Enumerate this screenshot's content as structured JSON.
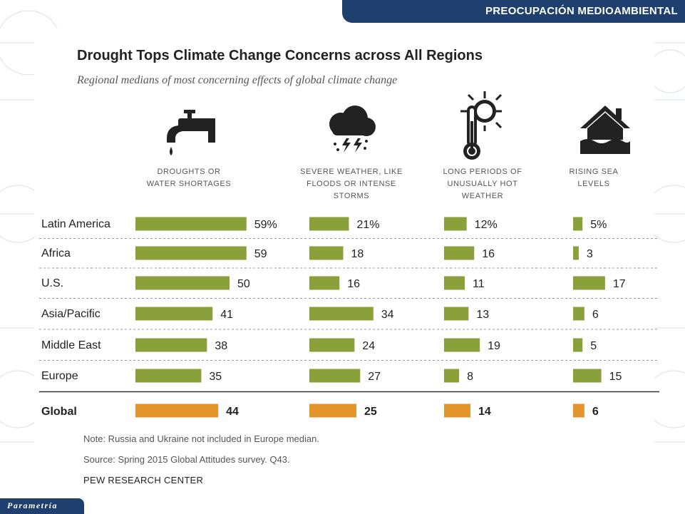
{
  "header": {
    "section_title": "PREOCUPACIÓN  MEDIOAMBIENTAL"
  },
  "footer": {
    "logo_text": "Parametría"
  },
  "chart_data": {
    "type": "bar",
    "title": "Drought Tops Climate Change Concerns across All Regions",
    "subtitle": "Regional medians of most concerning effects of global climate change",
    "value_format": "percent",
    "categories": [
      "Latin America",
      "Africa",
      "U.S.",
      "Asia/Pacific",
      "Middle East",
      "Europe"
    ],
    "total": {
      "label": "Global",
      "color": "#e3942a"
    },
    "series_color": "#8aa03a",
    "series": [
      {
        "name": "DROUGHTS OR\nWATER SHORTAGES",
        "icon": "faucet-icon",
        "values": [
          59,
          59,
          50,
          41,
          38,
          35
        ],
        "total": 44,
        "first_label": "59%"
      },
      {
        "name": "SEVERE WEATHER, LIKE\nFLOODS OR INTENSE\nSTORMS",
        "icon": "storm-cloud-icon",
        "values": [
          21,
          18,
          16,
          34,
          24,
          27
        ],
        "total": 25,
        "first_label": "21%"
      },
      {
        "name": "LONG PERIODS OF\nUNUSUALLY HOT\nWEATHER",
        "icon": "thermometer-sun-icon",
        "values": [
          12,
          16,
          11,
          13,
          19,
          8
        ],
        "total": 14,
        "first_label": "12%"
      },
      {
        "name": "RISING SEA\nLEVELS",
        "icon": "flooded-house-icon",
        "values": [
          5,
          3,
          17,
          6,
          5,
          15
        ],
        "total": 6,
        "first_label": "5%"
      }
    ]
  },
  "notes": {
    "note": "Note: Russia and Ukraine not included in Europe median.",
    "source": "Source: Spring 2015 Global Attitudes survey. Q43.",
    "brand": "PEW RESEARCH CENTER"
  }
}
